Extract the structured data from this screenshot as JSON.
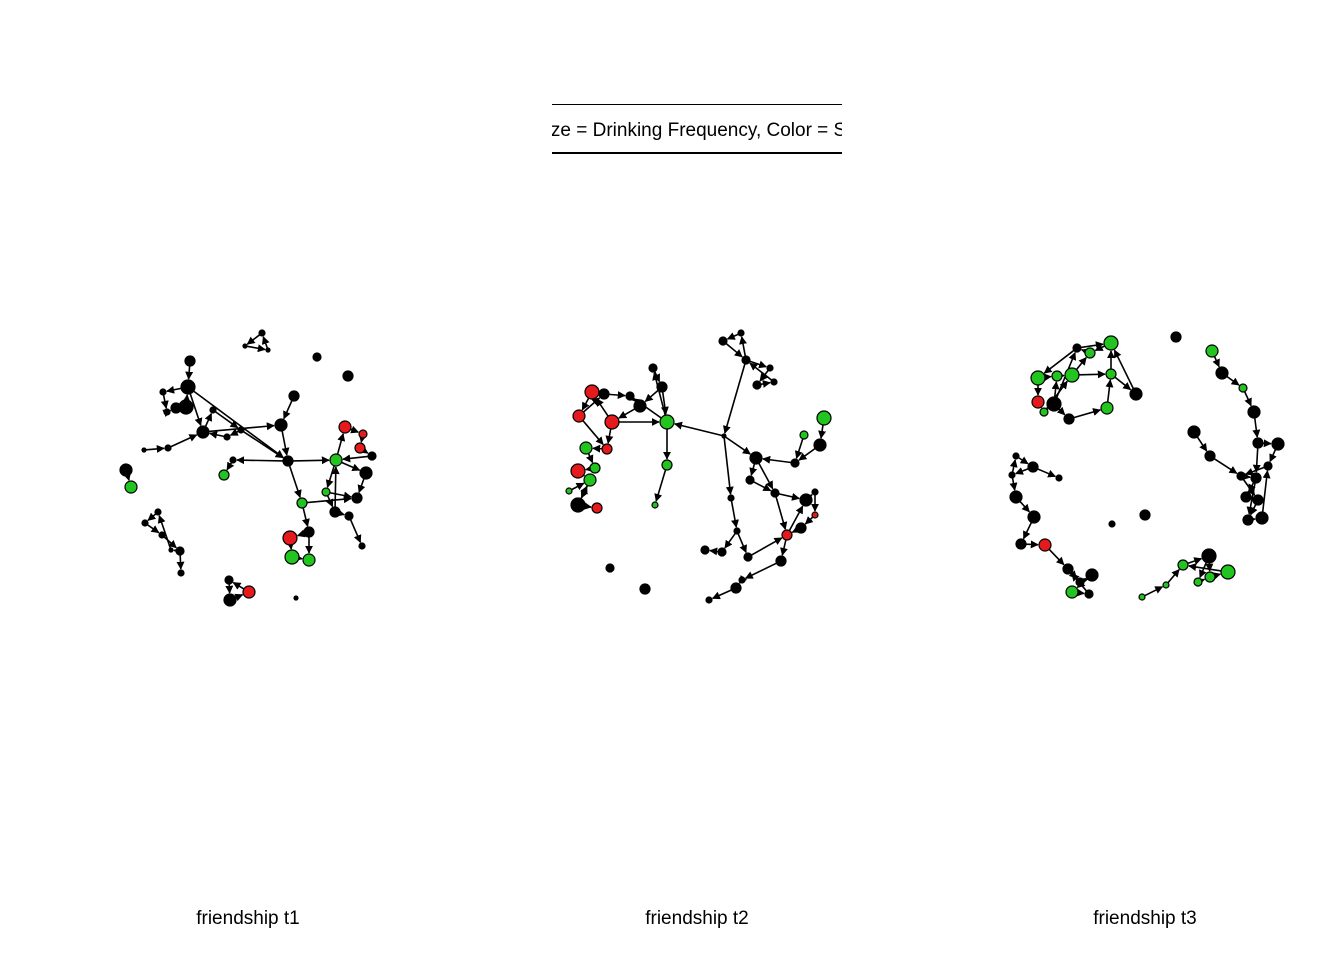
{
  "header": {
    "title": "Size = Drinking Frequency, Color = Smoking"
  },
  "colors": {
    "node_default": "#000000",
    "node_smoker_regular": "#e41a1c",
    "node_smoker_occasional": "#22c51f",
    "edge": "#000000"
  },
  "panels": [
    {
      "caption": "friendship t1"
    },
    {
      "caption": "friendship t2"
    },
    {
      "caption": "friendship t3"
    }
  ]
}
